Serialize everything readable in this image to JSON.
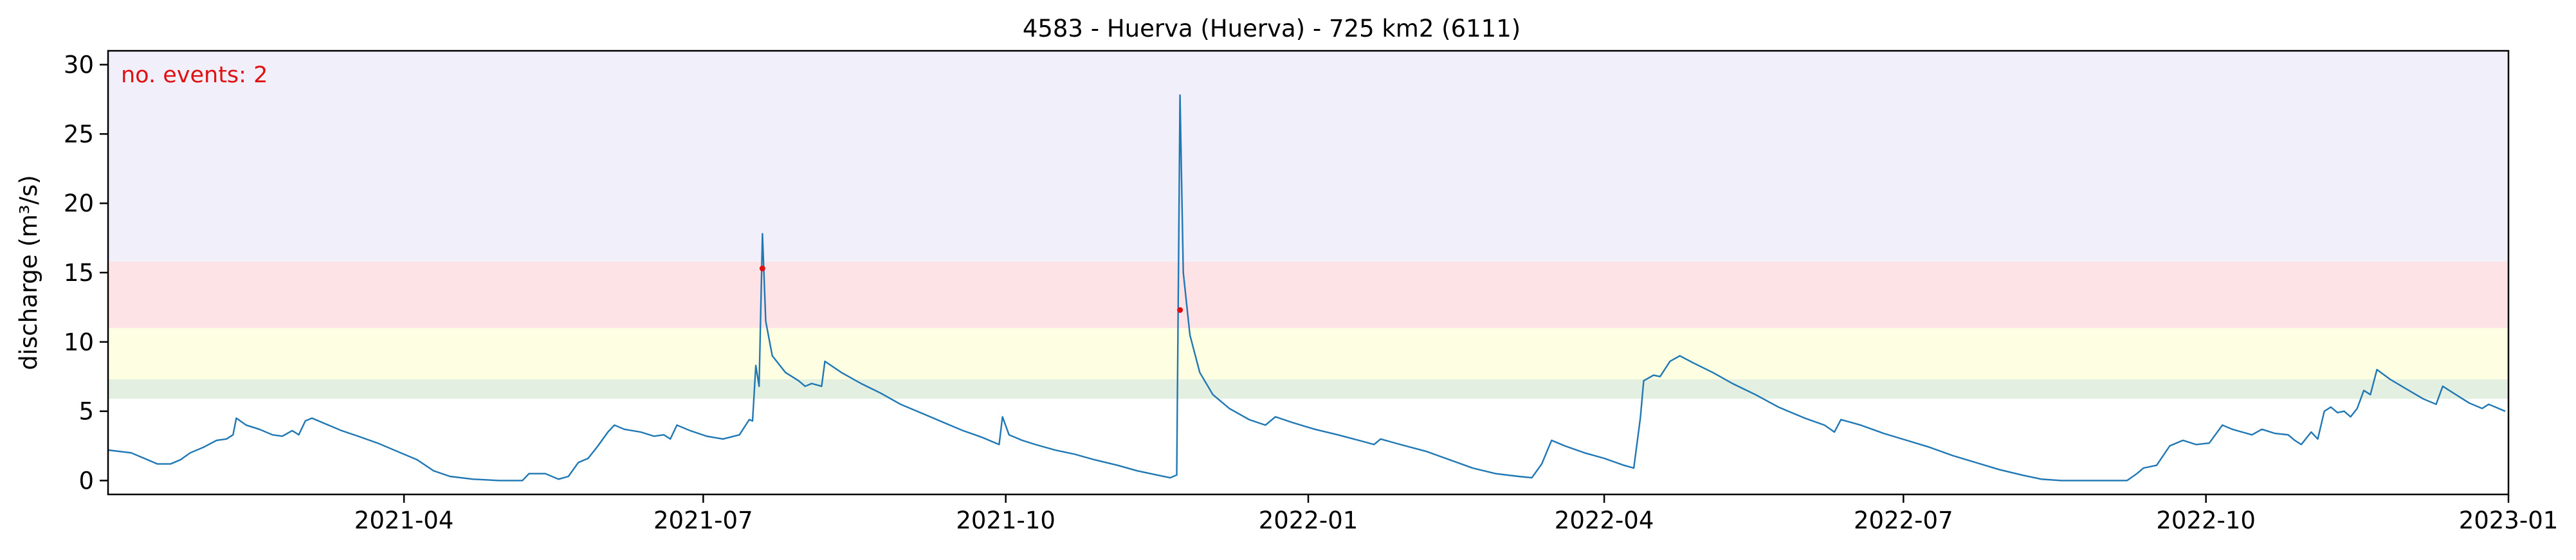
{
  "chart_data": {
    "type": "line",
    "title": "4583 - Huerva (Huerva) - 725 km2 (6111)",
    "ylabel": "discharge (m³/s)",
    "xlabel": "",
    "annotation": "no. events: 2",
    "xlim": [
      "2021-01-01",
      "2023-01-01"
    ],
    "ylim": [
      -1,
      31
    ],
    "x_ticks": [
      "2021-04",
      "2021-07",
      "2021-10",
      "2022-01",
      "2022-04",
      "2022-07",
      "2022-10",
      "2023-01"
    ],
    "y_ticks": [
      0,
      5,
      10,
      15,
      20,
      25,
      30
    ],
    "grid": false,
    "threshold_bands": [
      {
        "from": 5.9,
        "to": 7.3,
        "color": "#e3efe0"
      },
      {
        "from": 7.3,
        "to": 11.0,
        "color": "#feffe2"
      },
      {
        "from": 11.0,
        "to": 15.8,
        "color": "#fde2e6"
      },
      {
        "from": 15.8,
        "to": 31.0,
        "color": "#f1effa"
      }
    ],
    "series": [
      {
        "color": "#1f77b4",
        "points": [
          [
            "2021-01-01",
            2.2
          ],
          [
            "2021-01-08",
            2.0
          ],
          [
            "2021-01-12",
            1.6
          ],
          [
            "2021-01-16",
            1.2
          ],
          [
            "2021-01-20",
            1.2
          ],
          [
            "2021-01-23",
            1.5
          ],
          [
            "2021-01-26",
            2.0
          ],
          [
            "2021-01-30",
            2.4
          ],
          [
            "2021-02-03",
            2.9
          ],
          [
            "2021-02-06",
            3.0
          ],
          [
            "2021-02-08",
            3.3
          ],
          [
            "2021-02-09",
            4.5
          ],
          [
            "2021-02-12",
            4.0
          ],
          [
            "2021-02-16",
            3.7
          ],
          [
            "2021-02-20",
            3.3
          ],
          [
            "2021-02-23",
            3.2
          ],
          [
            "2021-02-26",
            3.6
          ],
          [
            "2021-02-28",
            3.3
          ],
          [
            "2021-03-02",
            4.3
          ],
          [
            "2021-03-04",
            4.5
          ],
          [
            "2021-03-08",
            4.1
          ],
          [
            "2021-03-13",
            3.6
          ],
          [
            "2021-03-18",
            3.2
          ],
          [
            "2021-03-24",
            2.7
          ],
          [
            "2021-03-30",
            2.1
          ],
          [
            "2021-04-05",
            1.5
          ],
          [
            "2021-04-10",
            0.7
          ],
          [
            "2021-04-15",
            0.3
          ],
          [
            "2021-04-22",
            0.1
          ],
          [
            "2021-04-30",
            0.0
          ],
          [
            "2021-05-07",
            0.0
          ],
          [
            "2021-05-09",
            0.5
          ],
          [
            "2021-05-14",
            0.5
          ],
          [
            "2021-05-18",
            0.1
          ],
          [
            "2021-05-21",
            0.3
          ],
          [
            "2021-05-24",
            1.3
          ],
          [
            "2021-05-27",
            1.6
          ],
          [
            "2021-05-30",
            2.5
          ],
          [
            "2021-06-02",
            3.5
          ],
          [
            "2021-06-04",
            4.0
          ],
          [
            "2021-06-07",
            3.7
          ],
          [
            "2021-06-12",
            3.5
          ],
          [
            "2021-06-16",
            3.2
          ],
          [
            "2021-06-19",
            3.3
          ],
          [
            "2021-06-21",
            3.0
          ],
          [
            "2021-06-23",
            4.0
          ],
          [
            "2021-06-27",
            3.6
          ],
          [
            "2021-07-02",
            3.2
          ],
          [
            "2021-07-07",
            3.0
          ],
          [
            "2021-07-12",
            3.3
          ],
          [
            "2021-07-15",
            4.4
          ],
          [
            "2021-07-16",
            4.3
          ],
          [
            "2021-07-17",
            8.3
          ],
          [
            "2021-07-18",
            6.8
          ],
          [
            "2021-07-19",
            17.8
          ],
          [
            "2021-07-20",
            11.5
          ],
          [
            "2021-07-22",
            9.0
          ],
          [
            "2021-07-26",
            7.8
          ],
          [
            "2021-07-30",
            7.2
          ],
          [
            "2021-08-01",
            6.8
          ],
          [
            "2021-08-03",
            7.0
          ],
          [
            "2021-08-06",
            6.8
          ],
          [
            "2021-08-07",
            8.6
          ],
          [
            "2021-08-12",
            7.8
          ],
          [
            "2021-08-18",
            7.0
          ],
          [
            "2021-08-24",
            6.3
          ],
          [
            "2021-08-30",
            5.5
          ],
          [
            "2021-09-06",
            4.8
          ],
          [
            "2021-09-12",
            4.2
          ],
          [
            "2021-09-18",
            3.6
          ],
          [
            "2021-09-24",
            3.1
          ],
          [
            "2021-09-27",
            2.8
          ],
          [
            "2021-09-29",
            2.6
          ],
          [
            "2021-09-30",
            4.6
          ],
          [
            "2021-10-02",
            3.3
          ],
          [
            "2021-10-06",
            2.9
          ],
          [
            "2021-10-10",
            2.6
          ],
          [
            "2021-10-16",
            2.2
          ],
          [
            "2021-10-22",
            1.9
          ],
          [
            "2021-10-28",
            1.5
          ],
          [
            "2021-11-04",
            1.1
          ],
          [
            "2021-11-10",
            0.7
          ],
          [
            "2021-11-16",
            0.4
          ],
          [
            "2021-11-20",
            0.2
          ],
          [
            "2021-11-22",
            0.4
          ],
          [
            "2021-11-23",
            27.8
          ],
          [
            "2021-11-24",
            15.0
          ],
          [
            "2021-11-26",
            10.5
          ],
          [
            "2021-11-29",
            7.8
          ],
          [
            "2021-12-03",
            6.2
          ],
          [
            "2021-12-08",
            5.2
          ],
          [
            "2021-12-14",
            4.4
          ],
          [
            "2021-12-19",
            4.0
          ],
          [
            "2021-12-22",
            4.6
          ],
          [
            "2021-12-27",
            4.2
          ],
          [
            "2022-01-03",
            3.7
          ],
          [
            "2022-01-10",
            3.3
          ],
          [
            "2022-01-18",
            2.8
          ],
          [
            "2022-01-21",
            2.6
          ],
          [
            "2022-01-23",
            3.0
          ],
          [
            "2022-01-29",
            2.6
          ],
          [
            "2022-02-06",
            2.1
          ],
          [
            "2022-02-13",
            1.5
          ],
          [
            "2022-02-20",
            0.9
          ],
          [
            "2022-02-27",
            0.5
          ],
          [
            "2022-03-06",
            0.3
          ],
          [
            "2022-03-10",
            0.2
          ],
          [
            "2022-03-13",
            1.2
          ],
          [
            "2022-03-16",
            2.9
          ],
          [
            "2022-03-20",
            2.5
          ],
          [
            "2022-03-26",
            2.0
          ],
          [
            "2022-04-01",
            1.6
          ],
          [
            "2022-04-07",
            1.1
          ],
          [
            "2022-04-10",
            0.9
          ],
          [
            "2022-04-12",
            4.5
          ],
          [
            "2022-04-13",
            7.2
          ],
          [
            "2022-04-16",
            7.6
          ],
          [
            "2022-04-18",
            7.5
          ],
          [
            "2022-04-21",
            8.6
          ],
          [
            "2022-04-24",
            9.0
          ],
          [
            "2022-04-28",
            8.5
          ],
          [
            "2022-05-04",
            7.8
          ],
          [
            "2022-05-10",
            7.0
          ],
          [
            "2022-05-17",
            6.2
          ],
          [
            "2022-05-24",
            5.3
          ],
          [
            "2022-06-01",
            4.5
          ],
          [
            "2022-06-07",
            4.0
          ],
          [
            "2022-06-10",
            3.5
          ],
          [
            "2022-06-12",
            4.4
          ],
          [
            "2022-06-18",
            4.0
          ],
          [
            "2022-06-25",
            3.4
          ],
          [
            "2022-07-02",
            2.9
          ],
          [
            "2022-07-09",
            2.4
          ],
          [
            "2022-07-16",
            1.8
          ],
          [
            "2022-07-23",
            1.3
          ],
          [
            "2022-07-30",
            0.8
          ],
          [
            "2022-08-06",
            0.4
          ],
          [
            "2022-08-12",
            0.1
          ],
          [
            "2022-08-18",
            0.0
          ],
          [
            "2022-08-25",
            0.0
          ],
          [
            "2022-09-01",
            0.0
          ],
          [
            "2022-09-07",
            0.0
          ],
          [
            "2022-09-10",
            0.5
          ],
          [
            "2022-09-12",
            0.9
          ],
          [
            "2022-09-16",
            1.1
          ],
          [
            "2022-09-20",
            2.5
          ],
          [
            "2022-09-24",
            2.9
          ],
          [
            "2022-09-28",
            2.6
          ],
          [
            "2022-10-02",
            2.7
          ],
          [
            "2022-10-06",
            4.0
          ],
          [
            "2022-10-09",
            3.7
          ],
          [
            "2022-10-12",
            3.5
          ],
          [
            "2022-10-15",
            3.3
          ],
          [
            "2022-10-18",
            3.7
          ],
          [
            "2022-10-22",
            3.4
          ],
          [
            "2022-10-26",
            3.3
          ],
          [
            "2022-10-28",
            2.9
          ],
          [
            "2022-10-30",
            2.6
          ],
          [
            "2022-11-02",
            3.5
          ],
          [
            "2022-11-04",
            3.0
          ],
          [
            "2022-11-06",
            5.0
          ],
          [
            "2022-11-08",
            5.3
          ],
          [
            "2022-11-10",
            4.9
          ],
          [
            "2022-11-12",
            5.0
          ],
          [
            "2022-11-14",
            4.6
          ],
          [
            "2022-11-16",
            5.2
          ],
          [
            "2022-11-18",
            6.5
          ],
          [
            "2022-11-20",
            6.2
          ],
          [
            "2022-11-22",
            8.0
          ],
          [
            "2022-11-26",
            7.3
          ],
          [
            "2022-12-01",
            6.6
          ],
          [
            "2022-12-06",
            5.9
          ],
          [
            "2022-12-10",
            5.5
          ],
          [
            "2022-12-12",
            6.8
          ],
          [
            "2022-12-16",
            6.2
          ],
          [
            "2022-12-20",
            5.6
          ],
          [
            "2022-12-24",
            5.2
          ],
          [
            "2022-12-26",
            5.5
          ],
          [
            "2022-12-31",
            5.0
          ]
        ]
      }
    ],
    "events": [
      {
        "x": "2021-07-19",
        "y": 15.3
      },
      {
        "x": "2021-11-23",
        "y": 12.3
      }
    ],
    "event_color": "#e01010"
  }
}
